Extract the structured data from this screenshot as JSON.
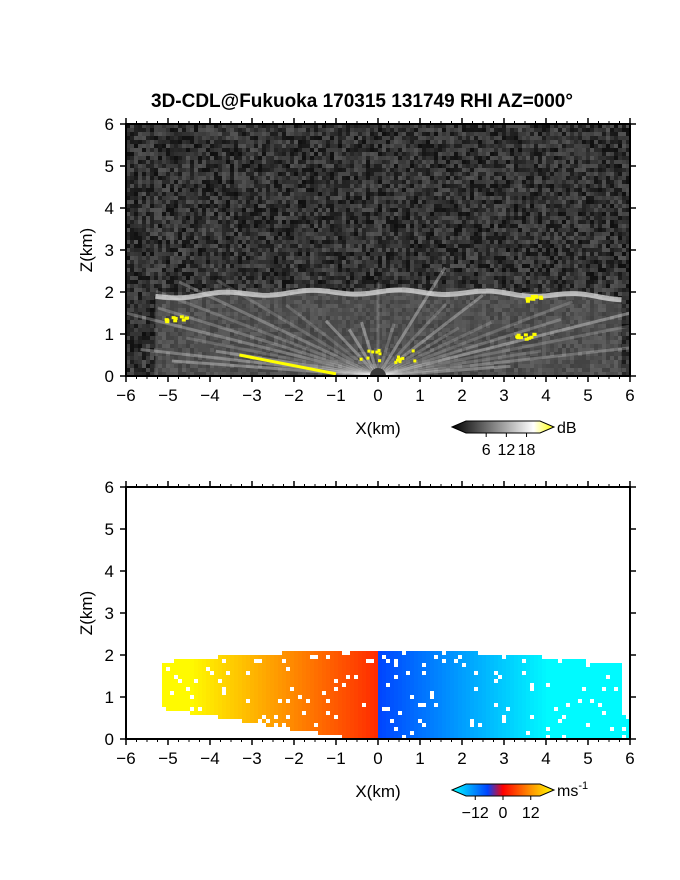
{
  "chart_data": [
    {
      "type": "heatmap",
      "panel": "top",
      "title": "3D-CDL@Fukuoka 170315 131749 RHI AZ=000°",
      "xlabel": "X(km)",
      "ylabel": "Z(km)",
      "xlim": [
        -6,
        6
      ],
      "ylim": [
        0,
        6
      ],
      "x_ticks": [
        "-6",
        "-5",
        "-4",
        "-3",
        "-2",
        "-1",
        "0",
        "1",
        "2",
        "3",
        "4",
        "5",
        "6"
      ],
      "y_ticks": [
        "0",
        "1",
        "2",
        "3",
        "4",
        "5",
        "6"
      ],
      "colorbar": {
        "unit": "dB",
        "tick_labels": [
          "6",
          "12",
          "18"
        ],
        "ticks": [
          6,
          12,
          18
        ],
        "range": [
          0,
          22
        ],
        "colors": [
          "#000000",
          "#ffffff",
          "#ffff00"
        ]
      },
      "features": {
        "layer_top_km": 2.0,
        "cloud_patches_km": [
          [
            -4.8,
            1.35
          ],
          [
            3.8,
            1.85
          ],
          [
            3.5,
            0.95
          ]
        ],
        "ground_clutter_line_km": [
          [
            -3.3,
            0.5
          ],
          [
            -1.0,
            0.05
          ]
        ],
        "near_radar_speckle_km": [
          [
            -0.2,
            0.5
          ],
          [
            0.6,
            0.5
          ]
        ]
      }
    },
    {
      "type": "heatmap",
      "panel": "bottom",
      "title": "",
      "xlabel": "X(km)",
      "ylabel": "Z(km)",
      "xlim": [
        -6,
        6
      ],
      "ylim": [
        0,
        6
      ],
      "x_ticks": [
        "-6",
        "-5",
        "-4",
        "-3",
        "-2",
        "-1",
        "0",
        "1",
        "2",
        "3",
        "4",
        "5",
        "6"
      ],
      "y_ticks": [
        "0",
        "1",
        "2",
        "3",
        "4",
        "5",
        "6"
      ],
      "colorbar": {
        "unit": "ms",
        "unit_exponent": "-1",
        "tick_labels": [
          "-12",
          "0",
          "12"
        ],
        "ticks": [
          -12,
          0,
          12
        ],
        "range": [
          -16,
          16
        ],
        "colors": [
          "#00ffff",
          "#0044ff",
          "#ff0000",
          "#ffff00"
        ]
      },
      "features": {
        "negative_side": "x>0 (blue/cyan, receding)",
        "positive_side": "x<0 (red/yellow, approaching)",
        "layer_top_km": 2.0
      }
    }
  ]
}
